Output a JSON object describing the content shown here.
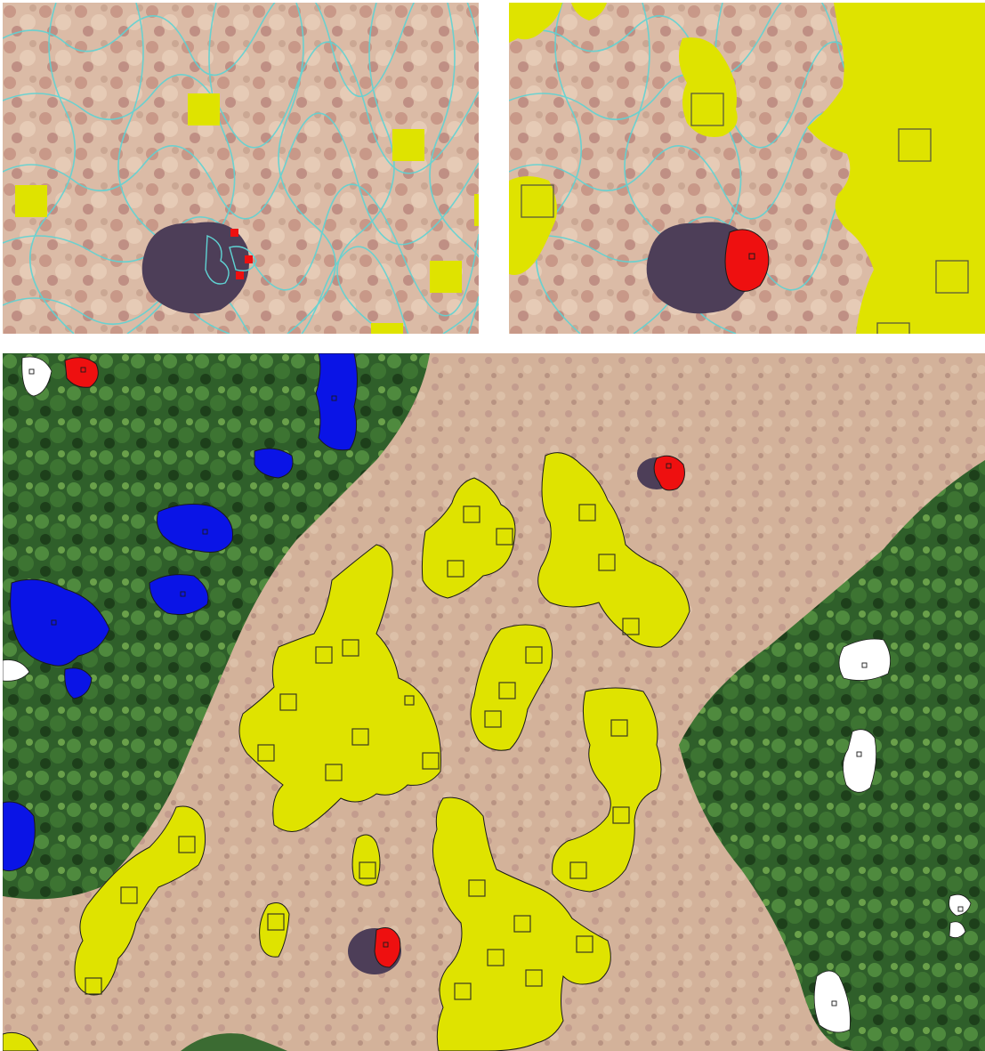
{
  "figure": {
    "panels": [
      {
        "id": "top-left",
        "description_hidden": true
      },
      {
        "id": "top-right",
        "description_hidden": true
      },
      {
        "id": "bottom",
        "description_hidden": true
      }
    ]
  },
  "colors": {
    "grassland": "#d9b8a2",
    "grassland_dark": "#c49a88",
    "forest": "#3f7a35",
    "forest_dark": "#1f4a1c",
    "shadow": "#4a3a52",
    "segment_outline": "#5fd3d3",
    "class_yellow": "#dfe300",
    "class_red": "#ee1010",
    "class_blue": "#0a14e6",
    "class_white": "#ffffff",
    "outline_dark": "#1a1a1a"
  }
}
